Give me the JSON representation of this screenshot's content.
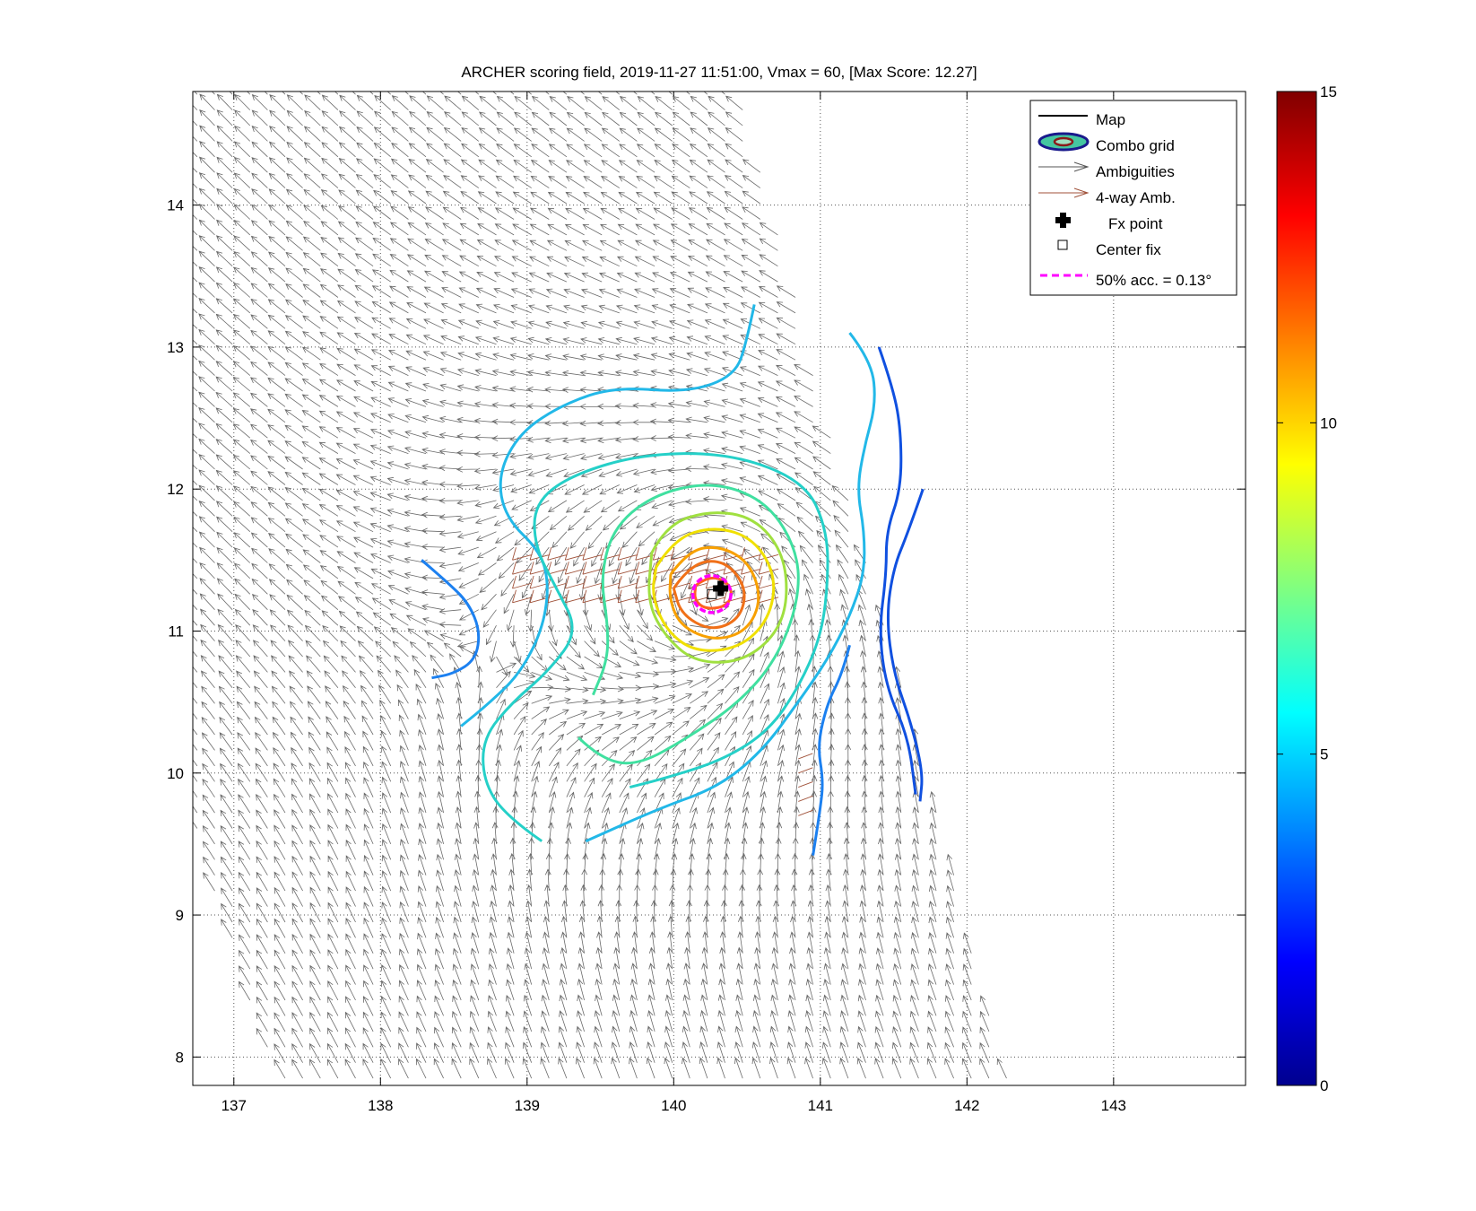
{
  "chart_data": {
    "type": "contour",
    "title": "ARCHER scoring field, 2019-11-27 11:51:00, Vmax = 60, [Max Score: 12.27]",
    "xlabel": "",
    "ylabel": "",
    "xlim": [
      136.72,
      143.9
    ],
    "ylim": [
      7.8,
      14.8
    ],
    "xticks": [
      137,
      138,
      139,
      140,
      141,
      142,
      143
    ],
    "yticks": [
      8,
      9,
      10,
      11,
      12,
      13,
      14
    ],
    "grid": true,
    "center_fix": {
      "lon": 140.26,
      "lat": 11.26
    },
    "fx_point": {
      "lon": 140.32,
      "lat": 11.3
    },
    "acc_radius_deg": 0.13,
    "colorbar": {
      "min": 0,
      "max": 15,
      "ticks": [
        0,
        5,
        10,
        15
      ],
      "colors": [
        "#00008f",
        "#0000ff",
        "#0080ff",
        "#00ffff",
        "#80ff80",
        "#ffff00",
        "#ff8000",
        "#ff0000",
        "#800000"
      ]
    },
    "legend": {
      "placement": "top-right",
      "entries": [
        {
          "label": "Map",
          "color": "#000000"
        },
        {
          "label": "Combo grid",
          "color": "#1a1a8c"
        },
        {
          "label": "Ambiguities",
          "color": "#555555"
        },
        {
          "label": "4-way Amb.",
          "color": "#a0523a"
        },
        {
          "label": "Fx point",
          "color": "#000000"
        },
        {
          "label": "Center fix",
          "color": "#000000"
        },
        {
          "label": "50% acc. = 0.13°",
          "color": "#ff00ff"
        }
      ]
    },
    "contours": [
      {
        "level": 4.3,
        "color": "#1050e0",
        "points": [
          [
            141.4,
            13
          ],
          [
            141.5,
            12.7
          ],
          [
            141.55,
            12.4
          ],
          [
            141.55,
            12.0
          ],
          [
            141.45,
            11.7
          ],
          [
            141.45,
            11.4
          ],
          [
            141.4,
            11.0
          ],
          [
            141.45,
            10.6
          ],
          [
            141.6,
            10.25
          ],
          [
            141.65,
            9.85
          ]
        ]
      },
      {
        "level": 4.3,
        "color": "#1050e0",
        "points": [
          [
            141.7,
            12.0
          ],
          [
            141.6,
            11.7
          ],
          [
            141.5,
            11.45
          ],
          [
            141.45,
            11.1
          ],
          [
            141.5,
            10.7
          ],
          [
            141.62,
            10.35
          ],
          [
            141.7,
            10.0
          ],
          [
            141.68,
            9.8
          ]
        ]
      },
      {
        "level": 4.6,
        "color": "#1c80f0",
        "points": [
          [
            138.28,
            11.5
          ],
          [
            138.45,
            11.35
          ],
          [
            138.6,
            11.2
          ],
          [
            138.68,
            11.0
          ],
          [
            138.65,
            10.8
          ],
          [
            138.5,
            10.7
          ],
          [
            138.35,
            10.67
          ]
        ]
      },
      {
        "level": 4.6,
        "color": "#1c80f0",
        "points": [
          [
            141.2,
            10.9
          ],
          [
            141.15,
            10.7
          ],
          [
            141.05,
            10.5
          ],
          [
            140.98,
            10.2
          ],
          [
            141.02,
            9.95
          ],
          [
            141.0,
            9.75
          ],
          [
            140.95,
            9.42
          ]
        ]
      },
      {
        "level": 5.2,
        "color": "#22b8e8",
        "points": [
          [
            140.55,
            13.3
          ],
          [
            140.5,
            13.05
          ],
          [
            140.42,
            12.8
          ],
          [
            140.1,
            12.68
          ],
          [
            139.6,
            12.72
          ],
          [
            139.25,
            12.6
          ],
          [
            138.95,
            12.4
          ],
          [
            138.8,
            12.1
          ],
          [
            138.85,
            11.8
          ],
          [
            139.1,
            11.55
          ],
          [
            139.15,
            11.3
          ],
          [
            139.1,
            11.0
          ],
          [
            138.95,
            10.7
          ],
          [
            138.75,
            10.5
          ],
          [
            138.55,
            10.33
          ]
        ]
      },
      {
        "level": 5.2,
        "color": "#22b8e8",
        "points": [
          [
            141.2,
            13.1
          ],
          [
            141.35,
            12.9
          ],
          [
            141.38,
            12.6
          ],
          [
            141.3,
            12.3
          ],
          [
            141.25,
            12.0
          ],
          [
            141.3,
            11.7
          ],
          [
            141.3,
            11.4
          ],
          [
            141.2,
            11.1
          ],
          [
            141.05,
            10.8
          ],
          [
            140.85,
            10.5
          ],
          [
            140.6,
            10.15
          ],
          [
            140.3,
            9.9
          ],
          [
            139.9,
            9.75
          ],
          [
            139.4,
            9.52
          ]
        ]
      },
      {
        "level": 5.8,
        "color": "#25d0c8",
        "points": [
          [
            139.1,
            9.52
          ],
          [
            138.85,
            9.7
          ],
          [
            138.7,
            9.95
          ],
          [
            138.7,
            10.25
          ],
          [
            138.9,
            10.5
          ],
          [
            139.15,
            10.72
          ],
          [
            139.35,
            11.0
          ],
          [
            139.2,
            11.3
          ],
          [
            139.05,
            11.6
          ],
          [
            139.05,
            11.9
          ],
          [
            139.3,
            12.1
          ],
          [
            139.8,
            12.25
          ],
          [
            140.4,
            12.25
          ],
          [
            140.9,
            12.05
          ],
          [
            141.05,
            11.7
          ],
          [
            141.05,
            11.3
          ],
          [
            141.0,
            10.95
          ],
          [
            140.85,
            10.6
          ],
          [
            140.65,
            10.3
          ],
          [
            140.35,
            10.1
          ],
          [
            140.0,
            9.98
          ],
          [
            139.7,
            9.9
          ]
        ]
      },
      {
        "level": 6.8,
        "color": "#40e0a0",
        "points": [
          [
            139.35,
            10.25
          ],
          [
            139.5,
            10.1
          ],
          [
            139.75,
            10.05
          ],
          [
            140.1,
            10.25
          ],
          [
            140.45,
            10.5
          ],
          [
            140.7,
            10.8
          ],
          [
            140.85,
            11.2
          ],
          [
            140.85,
            11.55
          ],
          [
            140.65,
            11.9
          ],
          [
            140.3,
            12.05
          ],
          [
            139.9,
            11.98
          ],
          [
            139.6,
            11.75
          ],
          [
            139.5,
            11.4
          ],
          [
            139.55,
            11.05
          ],
          [
            139.55,
            10.8
          ],
          [
            139.45,
            10.55
          ]
        ]
      },
      {
        "level": 8.0,
        "color": "#a0e040",
        "points": [
          [
            139.85,
            11.55
          ],
          [
            139.95,
            11.75
          ],
          [
            140.25,
            11.85
          ],
          [
            140.55,
            11.8
          ],
          [
            140.75,
            11.55
          ],
          [
            140.78,
            11.2
          ],
          [
            140.68,
            10.95
          ],
          [
            140.45,
            10.78
          ],
          [
            140.15,
            10.78
          ],
          [
            139.95,
            10.95
          ],
          [
            139.82,
            11.2
          ],
          [
            139.85,
            11.55
          ]
        ]
      },
      {
        "level": 9.5,
        "color": "#f0e000",
        "points": [
          [
            139.88,
            11.45
          ],
          [
            140.0,
            11.65
          ],
          [
            140.28,
            11.74
          ],
          [
            140.55,
            11.65
          ],
          [
            140.7,
            11.38
          ],
          [
            140.65,
            11.08
          ],
          [
            140.45,
            10.88
          ],
          [
            140.15,
            10.85
          ],
          [
            139.95,
            11.0
          ],
          [
            139.85,
            11.25
          ],
          [
            139.88,
            11.45
          ]
        ]
      },
      {
        "level": 10.3,
        "color": "#f8a000",
        "points": [
          [
            139.98,
            11.4
          ],
          [
            140.1,
            11.57
          ],
          [
            140.32,
            11.6
          ],
          [
            140.52,
            11.48
          ],
          [
            140.6,
            11.22
          ],
          [
            140.5,
            11.0
          ],
          [
            140.28,
            10.93
          ],
          [
            140.05,
            11.03
          ],
          [
            139.97,
            11.22
          ],
          [
            139.98,
            11.4
          ]
        ]
      },
      {
        "level": 11.2,
        "color": "#f07018",
        "points": [
          [
            140.0,
            11.3
          ],
          [
            140.12,
            11.48
          ],
          [
            140.35,
            11.5
          ],
          [
            140.5,
            11.3
          ],
          [
            140.45,
            11.08
          ],
          [
            140.25,
            11.0
          ],
          [
            140.05,
            11.12
          ],
          [
            140.0,
            11.3
          ]
        ]
      },
      {
        "level": 12.2,
        "color": "#ff6020",
        "points": [
          [
            140.15,
            11.32
          ],
          [
            140.25,
            11.4
          ],
          [
            140.4,
            11.32
          ],
          [
            140.38,
            11.18
          ],
          [
            140.22,
            11.15
          ],
          [
            140.14,
            11.22
          ],
          [
            140.15,
            11.32
          ]
        ]
      }
    ]
  }
}
